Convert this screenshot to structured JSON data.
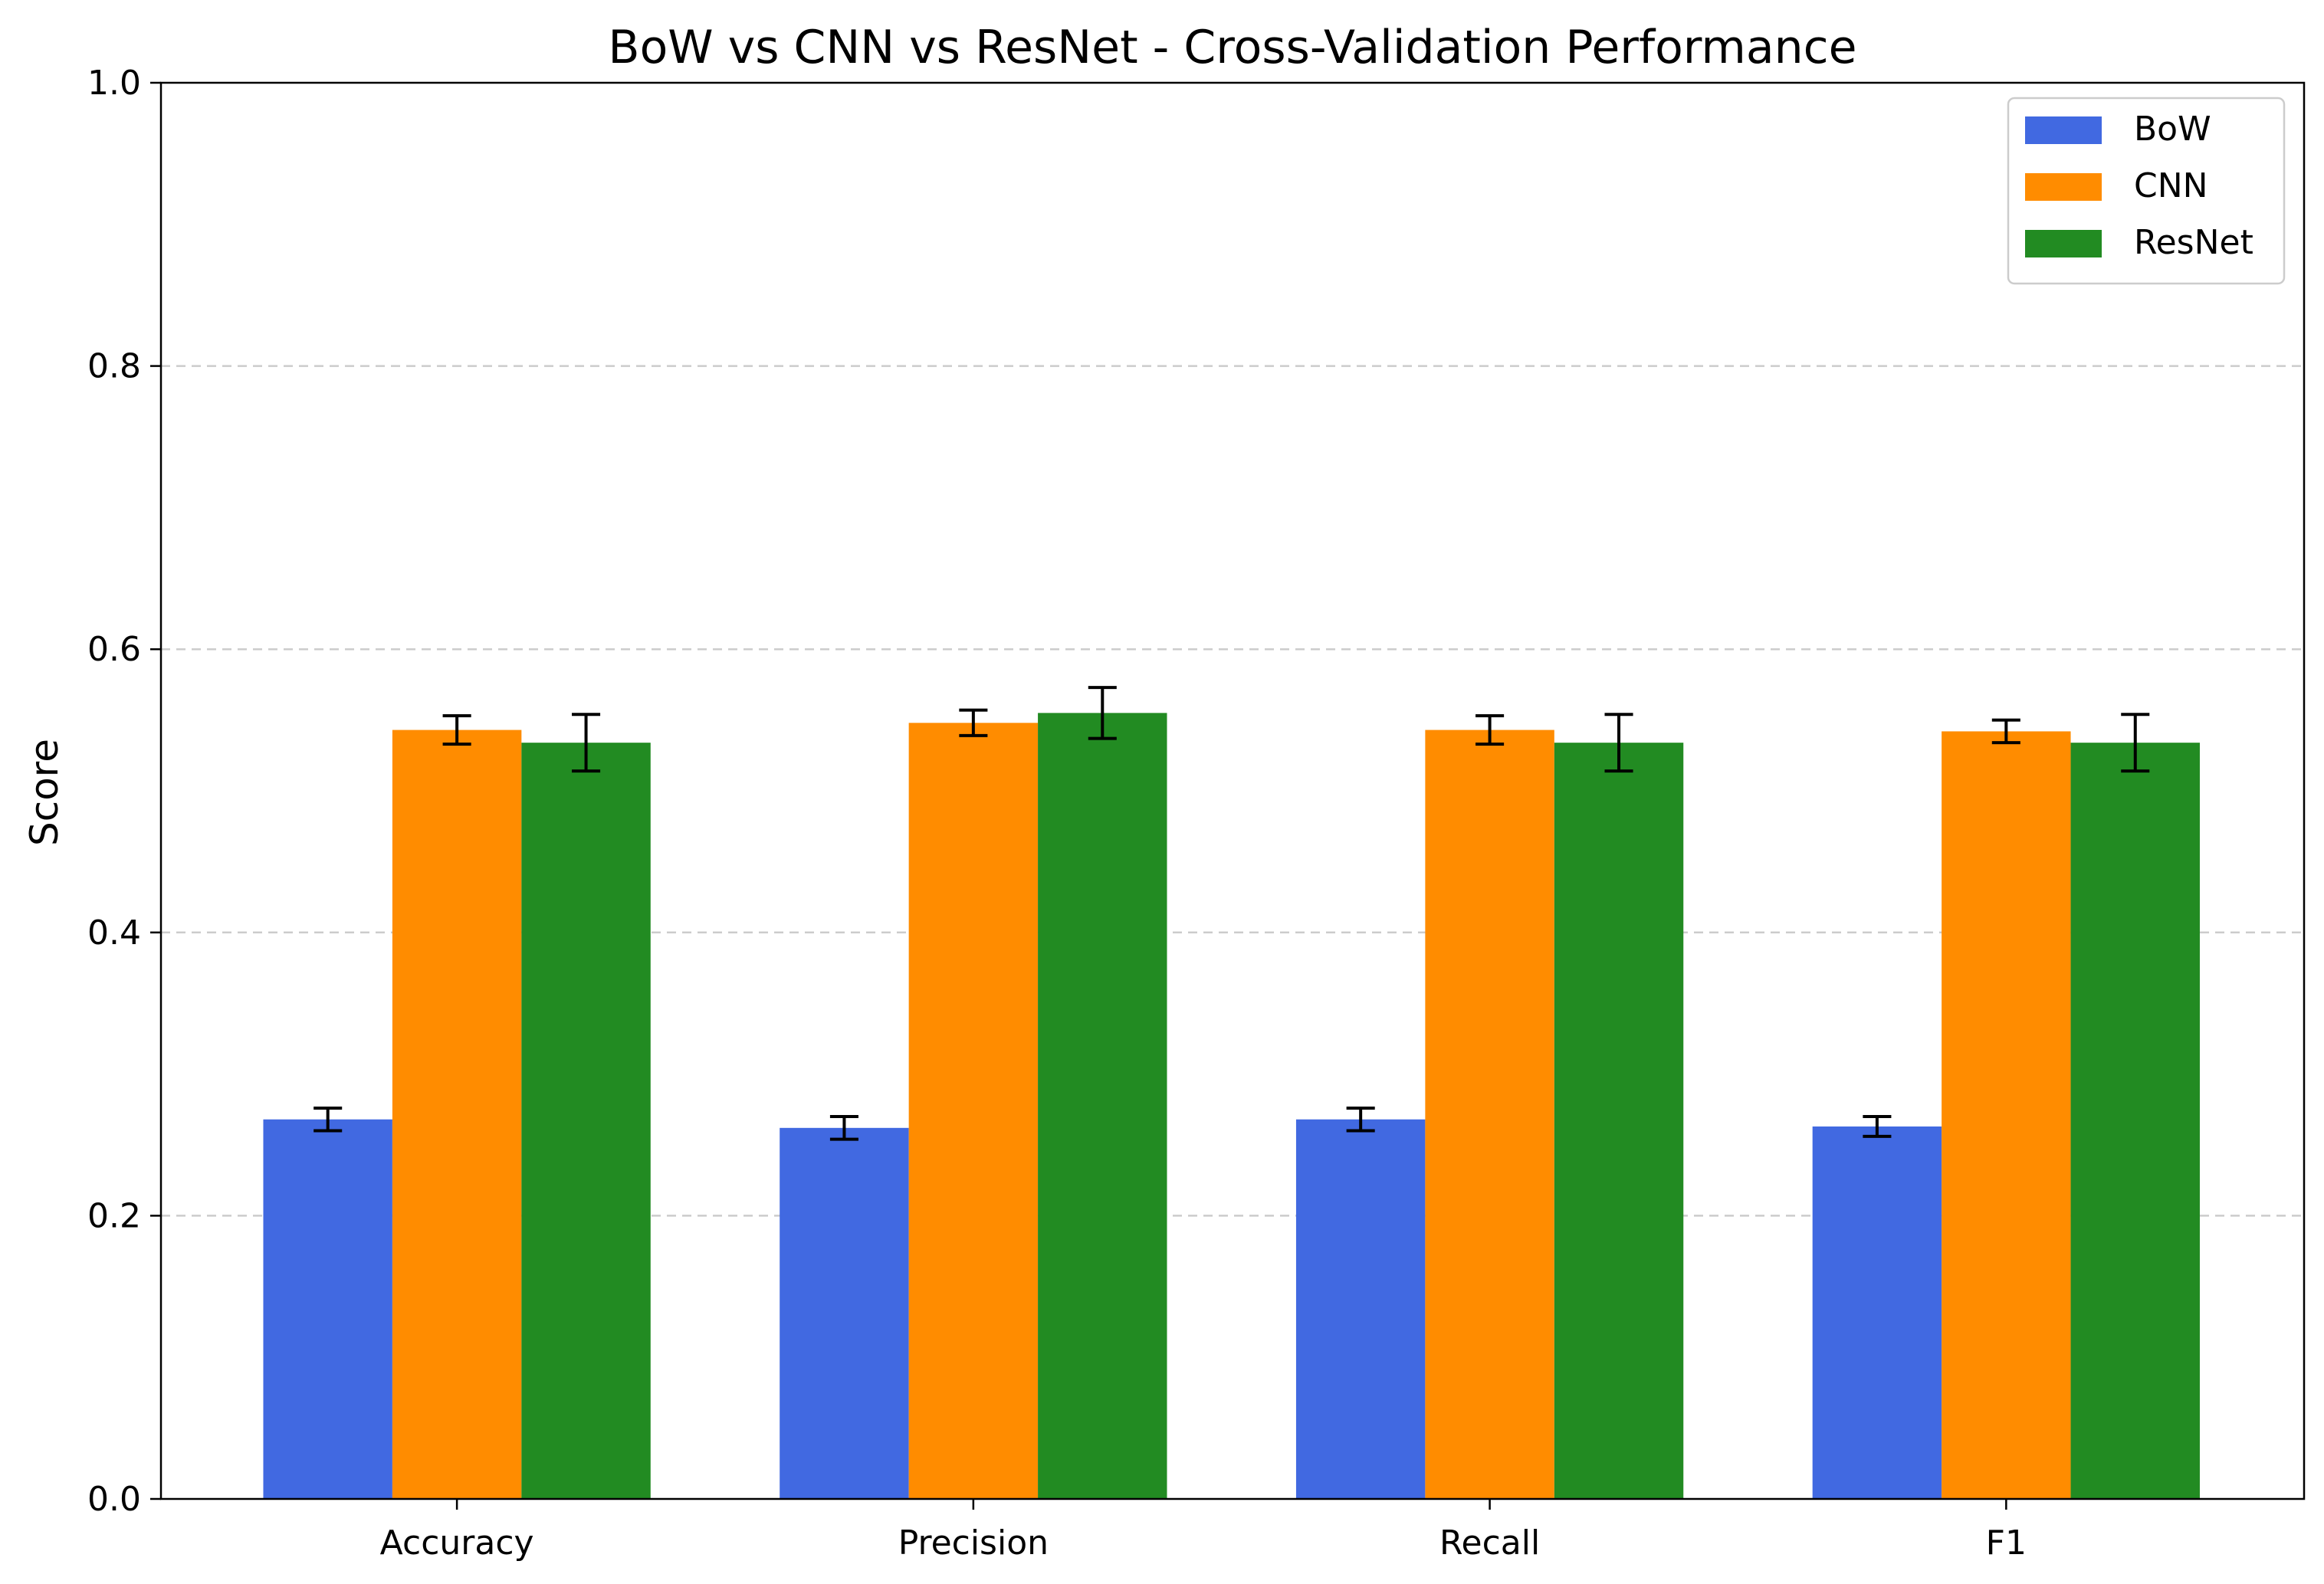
{
  "chart_data": {
    "type": "bar",
    "title": "BoW vs CNN vs ResNet - Cross-Validation Performance",
    "xlabel": "",
    "ylabel": "Score",
    "ylim": [
      0.0,
      1.0
    ],
    "yticks": [
      "0.0",
      "0.2",
      "0.4",
      "0.6",
      "0.8",
      "1.0"
    ],
    "categories": [
      "Accuracy",
      "Precision",
      "Recall",
      "F1"
    ],
    "grid": "y-dashed",
    "legend_position": "top-right",
    "series": [
      {
        "name": "BoW",
        "color": "#4169e1",
        "values": [
          0.268,
          0.262,
          0.268,
          0.263
        ],
        "errors": [
          0.008,
          0.008,
          0.008,
          0.007
        ]
      },
      {
        "name": "CNN",
        "color": "#ff8c00",
        "values": [
          0.543,
          0.548,
          0.543,
          0.542
        ],
        "errors": [
          0.01,
          0.009,
          0.01,
          0.008
        ]
      },
      {
        "name": "ResNet",
        "color": "#228b22",
        "values": [
          0.534,
          0.555,
          0.534,
          0.534
        ],
        "errors": [
          0.02,
          0.018,
          0.02,
          0.02
        ]
      }
    ]
  }
}
